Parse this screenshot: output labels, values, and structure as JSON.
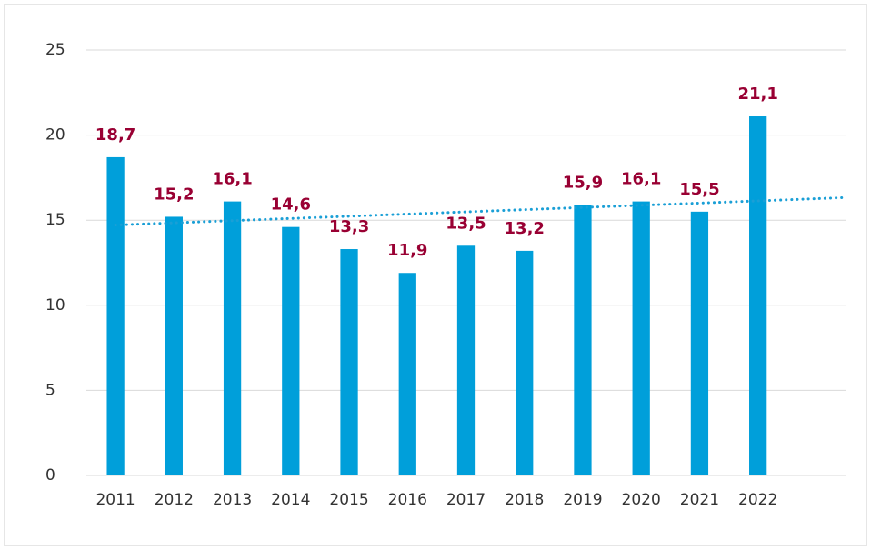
{
  "chart_data": {
    "type": "bar",
    "categories": [
      "2011",
      "2012",
      "2013",
      "2014",
      "2015",
      "2016",
      "2017",
      "2018",
      "2019",
      "2020",
      "2021",
      "2022",
      null
    ],
    "values": [
      18.7,
      15.2,
      16.1,
      14.6,
      13.3,
      11.9,
      13.5,
      13.2,
      15.9,
      16.1,
      15.5,
      21.1,
      null
    ],
    "value_labels": [
      "18,7",
      "15,2",
      "16,1",
      "14,6",
      "13,3",
      "11,9",
      "13,5",
      "13,2",
      "15,9",
      "16,1",
      "15,5",
      "21,1",
      null
    ],
    "color": "#009fda",
    "label_color": "#990033",
    "trendline": {
      "type": "linear",
      "color": "#1a9fd6"
    },
    "ylim": [
      0,
      25
    ],
    "yticks": [
      0,
      5,
      10,
      15,
      20,
      25
    ],
    "grid": true
  }
}
